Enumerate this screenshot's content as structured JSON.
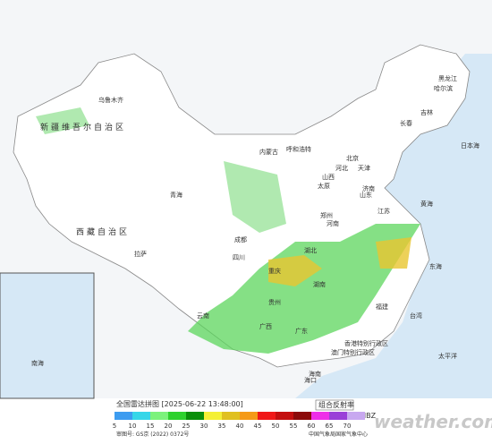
{
  "header": {
    "title": "全国雷达拼图 [2025-06-22 13:48:00]",
    "product": "组合反射率",
    "unit": "dBZ"
  },
  "legend": {
    "items": [
      {
        "value": 5,
        "color": "#3d9cf0"
      },
      {
        "value": 10,
        "color": "#36d6e8"
      },
      {
        "value": 15,
        "color": "#7cf27c"
      },
      {
        "value": 20,
        "color": "#2ed12e"
      },
      {
        "value": 25,
        "color": "#0a8f0a"
      },
      {
        "value": 30,
        "color": "#f4f036"
      },
      {
        "value": 35,
        "color": "#e0c020"
      },
      {
        "value": 40,
        "color": "#f59a18"
      },
      {
        "value": 45,
        "color": "#f01818"
      },
      {
        "value": 50,
        "color": "#c40f0f"
      },
      {
        "value": 55,
        "color": "#8c0a0a"
      },
      {
        "value": 60,
        "color": "#ee2ee8"
      },
      {
        "value": 65,
        "color": "#9a40d8"
      },
      {
        "value": 70,
        "color": "#c8a8f0"
      }
    ]
  },
  "footer": {
    "review_no": "审图号: GS京 (2022) 0372号",
    "agency": "中国气象局国家气象中心",
    "watermark": "weather.com.cn"
  },
  "places": [
    "新疆维吾尔自治区",
    "乌鲁木齐",
    "西藏自治区",
    "拉萨",
    "青海",
    "内蒙古",
    "呼和浩特",
    "黑龙江",
    "哈尔滨",
    "吉林",
    "长春",
    "北京",
    "天津",
    "河北",
    "山西",
    "太原",
    "山东",
    "济南",
    "河南",
    "郑州",
    "江苏",
    "湖北",
    "四川",
    "成都",
    "重庆",
    "湖南",
    "贵州",
    "云南",
    "广西",
    "广东",
    "福建",
    "台湾",
    "海南",
    "海口",
    "香港特别行政区",
    "澳门特别行政区",
    "日本海",
    "黄海",
    "东海",
    "太平洋",
    "南海"
  ]
}
